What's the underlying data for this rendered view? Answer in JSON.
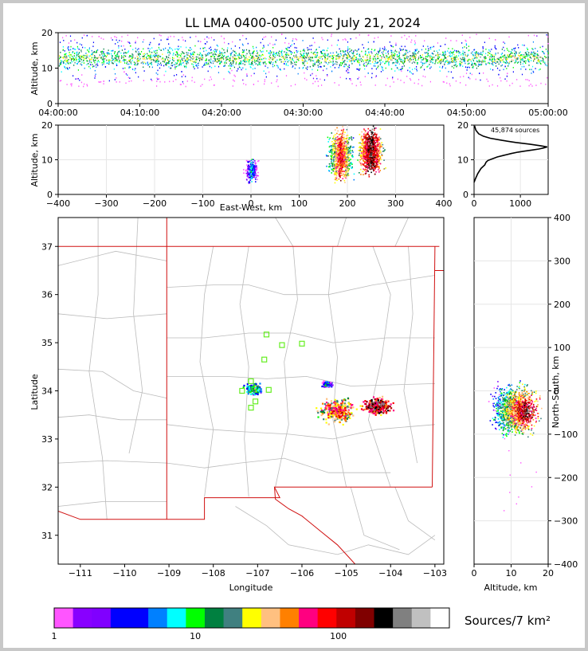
{
  "title": "LL LMA 0400-0500 UTC July 21, 2024",
  "chart_data": [
    {
      "panel": "altitude-time",
      "type": "heatmap",
      "ylabel": "Altitude, km",
      "ylim": [
        0,
        20
      ],
      "yticks": [
        "0",
        "10",
        "20"
      ],
      "xticks": [
        "04:00:00",
        "04:10:00",
        "04:20:00",
        "04:30:00",
        "04:40:00",
        "04:50:00",
        "05:00:00"
      ],
      "density_band_km": [
        8,
        18
      ],
      "peak_altitude_km": 13
    },
    {
      "panel": "altitude-eastwest",
      "type": "heatmap",
      "xlabel": "East-West, km",
      "ylabel": "Altitude, km",
      "xlim": [
        -400,
        400
      ],
      "ylim": [
        0,
        20
      ],
      "xticks": [
        "−400",
        "−300",
        "−200",
        "−100",
        "0",
        "100",
        "200",
        "300",
        "400"
      ],
      "yticks": [
        "0",
        "10",
        "20"
      ],
      "clusters": [
        {
          "x_range": [
            -20,
            20
          ],
          "z_range": [
            3,
            11
          ],
          "intensity": "low"
        },
        {
          "x_range": [
            140,
            210
          ],
          "z_range": [
            3,
            20
          ],
          "core_x": 185,
          "intensity": "high"
        },
        {
          "x_range": [
            215,
            290
          ],
          "z_range": [
            5,
            20
          ],
          "core_x": 248,
          "intensity": "very high"
        }
      ]
    },
    {
      "panel": "source-histogram",
      "type": "line",
      "annotation": "45,874 sources",
      "xlim": [
        0,
        1600
      ],
      "ylim": [
        0,
        20
      ],
      "xticks": [
        "0",
        "1000"
      ],
      "yticks": [
        "0",
        "10",
        "20"
      ],
      "x": [
        0,
        30,
        80,
        150,
        230,
        260,
        300,
        380,
        500,
        650,
        800,
        950,
        1100,
        1250,
        1400,
        1500,
        1580,
        1450,
        1200,
        900,
        600,
        350,
        200,
        100,
        40,
        10
      ],
      "y": [
        3.5,
        4.5,
        6.0,
        7.5,
        8.5,
        9.3,
        9.8,
        10.2,
        10.8,
        11.3,
        11.8,
        12.2,
        12.5,
        12.8,
        13.1,
        13.4,
        13.7,
        14.0,
        14.5,
        15.0,
        15.6,
        16.2,
        16.8,
        17.5,
        18.5,
        19.8
      ]
    },
    {
      "panel": "plan-view-map",
      "type": "scatter",
      "xlabel": "Longitude",
      "ylabel": "Latitude",
      "xlim": [
        -111.5,
        -102.8
      ],
      "ylim": [
        30.4,
        37.6
      ],
      "xticks": [
        "−111",
        "−110",
        "−109",
        "−108",
        "−107",
        "−106",
        "−105",
        "−104",
        "−103"
      ],
      "yticks": [
        "31",
        "32",
        "33",
        "34",
        "35",
        "36",
        "37"
      ],
      "stations": [
        {
          "lon": -106.8,
          "lat": 35.17
        },
        {
          "lon": -106.45,
          "lat": 34.95
        },
        {
          "lon": -106.0,
          "lat": 34.98
        },
        {
          "lon": -106.85,
          "lat": 34.65
        },
        {
          "lon": -107.15,
          "lat": 34.2
        },
        {
          "lon": -107.35,
          "lat": 34.0
        },
        {
          "lon": -107.05,
          "lat": 33.78
        },
        {
          "lon": -107.15,
          "lat": 33.65
        },
        {
          "lon": -106.75,
          "lat": 34.02
        }
      ],
      "storm_regions": [
        {
          "lon": -107.1,
          "lat": 34.05,
          "size": 0.5,
          "intensity": "medium"
        },
        {
          "lon": -105.45,
          "lat": 34.15,
          "size": 0.25,
          "intensity": "low"
        },
        {
          "lon": -105.2,
          "lat": 33.6,
          "size": 1.0,
          "intensity": "high"
        },
        {
          "lon": -104.3,
          "lat": 33.7,
          "size": 0.8,
          "intensity": "very high"
        }
      ]
    },
    {
      "panel": "altitude-northsouth",
      "type": "heatmap",
      "xlabel": "Altitude, km",
      "ylabel": "North-South, km",
      "xlim": [
        0,
        20
      ],
      "ylim": [
        -400,
        400
      ],
      "xticks": [
        "0",
        "10",
        "20"
      ],
      "yticks": [
        "−400",
        "−300",
        "−200",
        "−100",
        "0",
        "100",
        "200",
        "300",
        "400"
      ],
      "clusters": [
        {
          "y_range": [
            -110,
            25
          ],
          "z_range": [
            3,
            20
          ],
          "core_y": -45,
          "core_z": 14,
          "intensity": "very high"
        }
      ]
    }
  ],
  "colorbar": {
    "label": "Sources/7 km²",
    "ticks": [
      "1",
      "10",
      "100"
    ],
    "colors": [
      "#ff55ff",
      "#8800ff",
      "#8000ff",
      "#0000ff",
      "#0000ff",
      "#0080ff",
      "#00ffff",
      "#00ff00",
      "#008040",
      "#408080",
      "#ffff00",
      "#ffc080",
      "#ff8000",
      "#ff0080",
      "#ff0000",
      "#c00000",
      "#800000",
      "#000000",
      "#808080",
      "#c0c0c0",
      "#ffffff"
    ]
  }
}
